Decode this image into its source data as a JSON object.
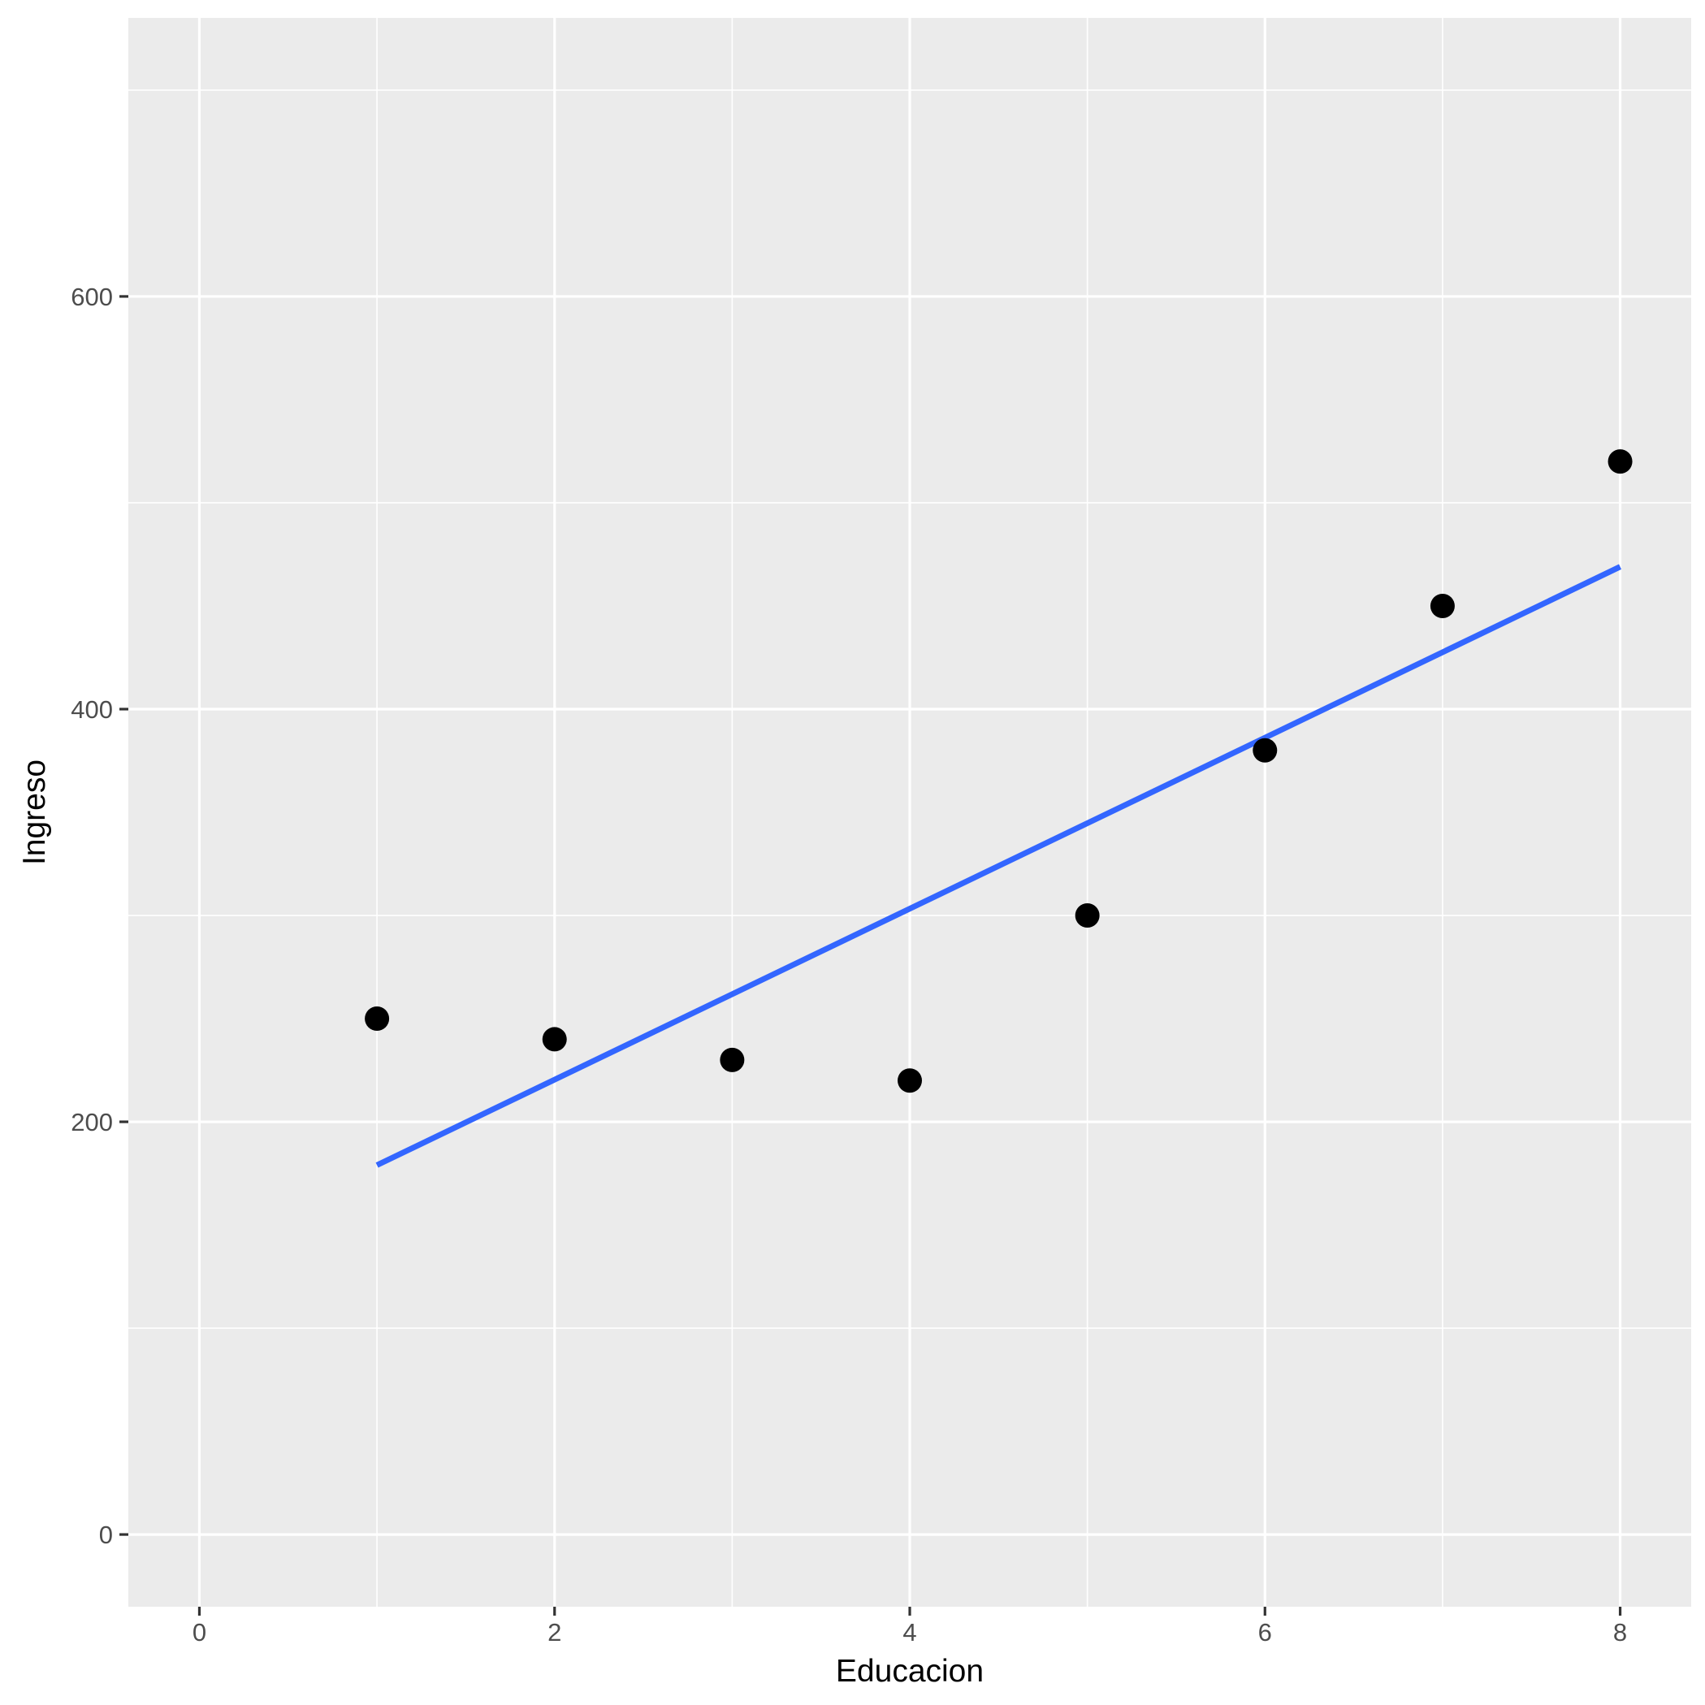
{
  "chart_data": {
    "type": "scatter",
    "xlabel": "Educacion",
    "ylabel": "Ingreso",
    "xlim": [
      -0.4,
      8.4
    ],
    "ylim": [
      -35,
      735
    ],
    "x_ticks": [
      0,
      2,
      4,
      6,
      8
    ],
    "y_ticks": [
      0,
      200,
      400,
      600
    ],
    "x_tick_labels": [
      "0",
      "2",
      "4",
      "6",
      "8"
    ],
    "y_tick_labels": [
      "0",
      "200",
      "400",
      "600"
    ],
    "x_minor": [
      1,
      3,
      5,
      7
    ],
    "y_minor": [
      100,
      300,
      500,
      700
    ],
    "grid": true,
    "series": [
      {
        "type": "scatter",
        "x": [
          1,
          2,
          3,
          4,
          5,
          6,
          7,
          8
        ],
        "y": [
          250,
          240,
          230,
          220,
          300,
          380,
          450,
          520
        ]
      },
      {
        "type": "line",
        "x": [
          1,
          8
        ],
        "y": [
          179,
          469
        ]
      }
    ],
    "colors": {
      "panel": "#EBEBEB",
      "grid": "#FFFFFF",
      "points": "#000000",
      "fit_line": "#3366FF"
    }
  }
}
